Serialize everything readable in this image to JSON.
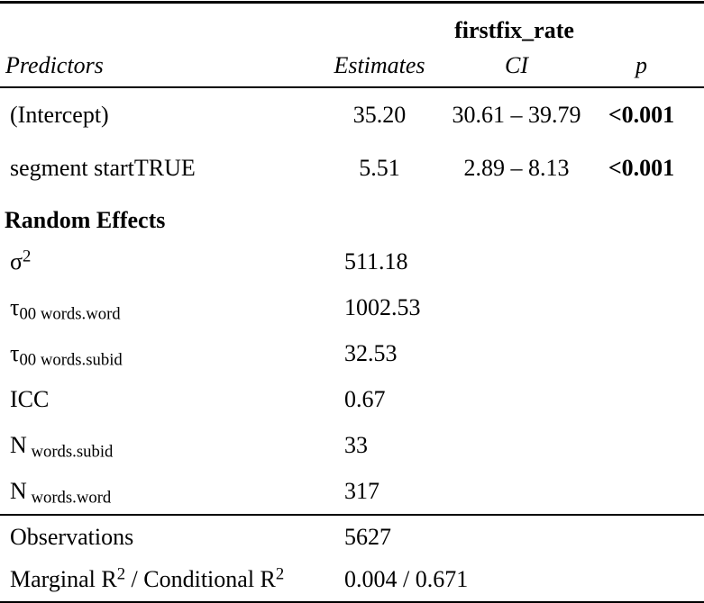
{
  "table": {
    "dependent_variable": "firstfix_rate",
    "columns": [
      "Predictors",
      "Estimates",
      "CI",
      "p"
    ],
    "fixed_effects": [
      {
        "predictor": "(Intercept)",
        "estimate": "35.20",
        "ci": "30.61 – 39.79",
        "p": "<0.001"
      },
      {
        "predictor": "segment startTRUE",
        "estimate": "5.51",
        "ci": "2.89 – 8.13",
        "p": "<0.001"
      }
    ],
    "random_effects_header": "Random Effects",
    "random_effects": [
      {
        "name": "sigma-squared",
        "label": [
          {
            "t": "σ"
          },
          {
            "sup": "2"
          }
        ],
        "value": "511.18"
      },
      {
        "name": "tau00-words-word",
        "label": [
          {
            "t": "τ"
          },
          {
            "sub": "00 words.word"
          }
        ],
        "value": "1002.53"
      },
      {
        "name": "tau00-words-subid",
        "label": [
          {
            "t": "τ"
          },
          {
            "sub": "00 words.subid"
          }
        ],
        "value": "32.53"
      },
      {
        "name": "icc",
        "label": [
          {
            "t": "ICC"
          }
        ],
        "value": "0.67"
      },
      {
        "name": "n-words-subid",
        "label": [
          {
            "t": "N"
          },
          {
            "sub": " words.subid"
          }
        ],
        "value": "33"
      },
      {
        "name": "n-words-word",
        "label": [
          {
            "t": "N"
          },
          {
            "sub": " words.word"
          }
        ],
        "value": "317"
      }
    ],
    "summary": [
      {
        "name": "observations",
        "label": [
          {
            "t": "Observations"
          }
        ],
        "value": "5627"
      },
      {
        "name": "r-squared",
        "label": [
          {
            "t": "Marginal R"
          },
          {
            "sup": "2"
          },
          {
            "t": " / Conditional R"
          },
          {
            "sup": "2"
          }
        ],
        "value": "0.004 / 0.671"
      }
    ],
    "colors": {
      "text": "#000000",
      "background": "#ffffff",
      "rule": "#000000"
    }
  }
}
